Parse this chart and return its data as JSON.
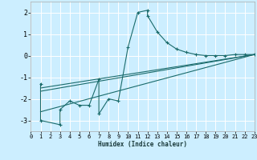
{
  "xlabel": "Humidex (Indice chaleur)",
  "bg_color": "#cceeff",
  "grid_color": "#ffffff",
  "line_color": "#1a6b6b",
  "xlim": [
    0,
    23
  ],
  "ylim": [
    -3.5,
    2.5
  ],
  "xticks": [
    0,
    1,
    2,
    3,
    4,
    5,
    6,
    7,
    8,
    9,
    10,
    11,
    12,
    13,
    14,
    15,
    16,
    17,
    18,
    19,
    20,
    21,
    22,
    23
  ],
  "yticks": [
    -3,
    -2,
    -1,
    0,
    1,
    2
  ],
  "line1_x": [
    1,
    1,
    3,
    3,
    4,
    5,
    6,
    7,
    7,
    8,
    9,
    10,
    11,
    12,
    12,
    13,
    14,
    15,
    16,
    17,
    18,
    19,
    20,
    21,
    22,
    23
  ],
  "line1_y": [
    -1.3,
    -3.0,
    -3.2,
    -2.5,
    -2.1,
    -2.3,
    -2.3,
    -1.1,
    -2.7,
    -2.0,
    -2.1,
    0.4,
    2.0,
    2.1,
    1.85,
    1.1,
    0.6,
    0.3,
    0.15,
    0.05,
    0.0,
    0.0,
    0.0,
    0.05,
    0.05,
    0.05
  ],
  "line2_x": [
    1,
    23
  ],
  "line2_y": [
    -1.5,
    0.05
  ],
  "line3_x": [
    1,
    23
  ],
  "line3_y": [
    -1.65,
    0.05
  ],
  "line4_x": [
    1,
    23
  ],
  "line4_y": [
    -2.6,
    0.05
  ]
}
